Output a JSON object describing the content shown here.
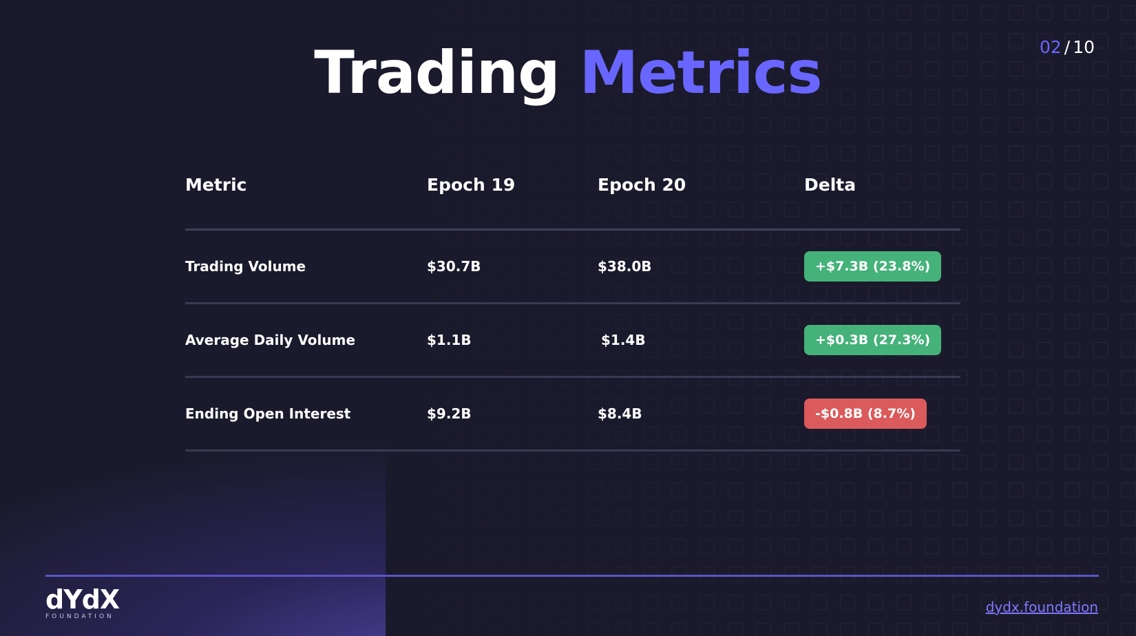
{
  "title": {
    "main": "Trading",
    "accent": "Metrics"
  },
  "page_counter": {
    "current": "02",
    "separator": "/",
    "total": "10"
  },
  "table": {
    "headers": [
      "Metric",
      "Epoch 19",
      "Epoch 20",
      "Delta"
    ],
    "rows": [
      {
        "metric": "Trading Volume",
        "epoch19": "$30.7B",
        "epoch20": "$38.0B",
        "delta": "+$7.3B (23.8%)",
        "trend": "up"
      },
      {
        "metric": "Average Daily Volume",
        "epoch19": "$1.1B",
        "epoch20": "$1.4B",
        "delta": "+$0.3B (27.3%)",
        "trend": "up"
      },
      {
        "metric": "Ending Open Interest",
        "epoch19": "$9.2B",
        "epoch20": "$8.4B",
        "delta": "-$0.8B (8.7%)",
        "trend": "down"
      }
    ]
  },
  "footer": {
    "logo_text": "dYdX",
    "logo_subtext": "FOUNDATION",
    "link": "dydx.foundation"
  },
  "colors": {
    "accent": "#6966ff",
    "background": "#1b1a2c",
    "positive": "#45b27a",
    "negative": "#db5a5b"
  }
}
